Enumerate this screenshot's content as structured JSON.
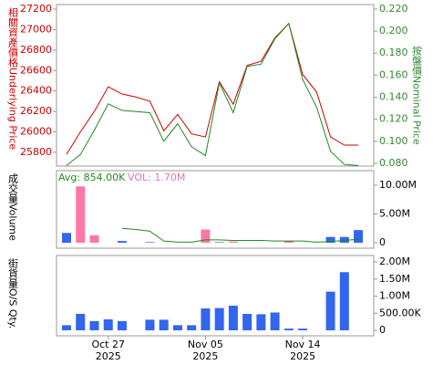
{
  "chart_data": [
    {
      "type": "line",
      "ylabel": "相關資產價格Underlying Price",
      "ylabel_color": "#cc0000",
      "y2label": "按盤價Nominal Price",
      "y2label_color": "#338833",
      "ylim": [
        25665,
        27245
      ],
      "yticks": [
        25800,
        26000,
        26200,
        26400,
        26600,
        26800,
        27000,
        27200
      ],
      "y2lim": [
        0.0775,
        0.2241
      ],
      "y2ticks": [
        {
          "value": 0.08,
          "label": "0.080"
        },
        {
          "value": 0.1,
          "label": "0.100"
        },
        {
          "value": 0.12,
          "label": "0.120"
        },
        {
          "value": 0.14,
          "label": "0.140"
        },
        {
          "value": 0.16,
          "label": "0.160"
        },
        {
          "value": 0.18,
          "label": "0.180"
        },
        {
          "value": 0.2,
          "label": "0.200"
        },
        {
          "value": 0.22,
          "label": "0.220"
        }
      ],
      "series": [
        {
          "color": "#cc0000",
          "values": [
            25780,
            26000,
            26200,
            26440,
            26370,
            26340,
            26300,
            26010,
            26170,
            25980,
            25950,
            26490,
            26270,
            26650,
            26690,
            26920,
            27060,
            26560,
            26390,
            25950,
            25870,
            25870
          ]
        },
        {
          "color": "#228822",
          "axis": "y2",
          "values": [
            0.078,
            0.088,
            0.11,
            0.134,
            0.128,
            0.127,
            0.126,
            0.1,
            0.116,
            0.095,
            0.087,
            0.153,
            0.126,
            0.168,
            0.17,
            0.193,
            0.207,
            0.156,
            0.131,
            0.091,
            0.079,
            0.078
          ]
        }
      ]
    },
    {
      "type": "bar",
      "ylabel": "成交量Volume",
      "annotations": [
        {
          "text": "Avg: 854.00K",
          "color": "#228822"
        },
        {
          "text": "VOL: 1.70M",
          "color": "#dd77bb"
        }
      ],
      "ylim": [
        -950000,
        12540000
      ],
      "yticks": [
        0,
        {
          "value": 5000000,
          "label": "5.00M"
        },
        {
          "value": 10000000,
          "label": "10.00M"
        }
      ],
      "series": [
        {
          "values": [
            1700000,
            9800000,
            1300000,
            null,
            300000,
            null,
            100000,
            null,
            null,
            null,
            2300000,
            100000,
            200000,
            null,
            null,
            null,
            300000,
            null,
            null,
            1000000,
            1000000,
            2200000
          ],
          "colors": [
            "#3366ee",
            "#ff77a8",
            "#ff77a8",
            null,
            "#3366ee",
            null,
            "#3366ee",
            null,
            null,
            null,
            "#ff77a8",
            "#3366ee",
            "#ff77a8",
            null,
            null,
            null,
            "#ff77a8",
            null,
            null,
            "#3366ee",
            "#3366ee",
            "#3366ee"
          ]
        },
        {
          "type": "line",
          "color": "#228822",
          "values": [
            null,
            null,
            null,
            null,
            2500000,
            2300000,
            2000000,
            300000,
            100000,
            100000,
            500000,
            500000,
            400000,
            400000,
            400000,
            300000,
            300000,
            300000,
            100000,
            200000,
            400000,
            600000
          ]
        }
      ]
    },
    {
      "type": "bar",
      "ylabel": "街貨量O/S Qty.",
      "categories": [
        null,
        null,
        null,
        "Oct 27",
        null,
        null,
        null,
        null,
        null,
        null,
        "Nov 05",
        null,
        null,
        null,
        null,
        null,
        null,
        "Nov 14",
        null,
        null,
        null,
        null
      ],
      "category_years": [
        null,
        null,
        null,
        "2025",
        null,
        null,
        null,
        null,
        null,
        null,
        "2025",
        null,
        null,
        null,
        null,
        null,
        null,
        "2025",
        null,
        null,
        null,
        null
      ],
      "ylim": [
        -160000,
        2187000
      ],
      "yticks": [
        0,
        {
          "value": 500000,
          "label": "500.00K"
        },
        {
          "value": 1000000,
          "label": "1.00M"
        },
        {
          "value": 1500000,
          "label": "1.50M"
        },
        {
          "value": 2000000,
          "label": "2.00M"
        }
      ],
      "series": [
        {
          "color": "#3366ee",
          "values": [
            150000,
            480000,
            270000,
            320000,
            270000,
            null,
            310000,
            310000,
            150000,
            150000,
            640000,
            650000,
            720000,
            480000,
            470000,
            520000,
            50000,
            50000,
            null,
            1130000,
            1700000,
            null
          ]
        }
      ]
    }
  ]
}
